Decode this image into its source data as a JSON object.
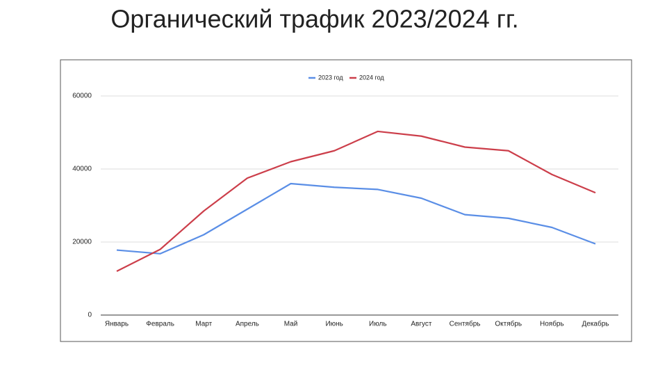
{
  "chart_data": {
    "type": "line",
    "title": "Органический трафик 2023/2024 гг.",
    "categories": [
      "Январь",
      "Февраль",
      "Март",
      "Апрель",
      "Май",
      "Июнь",
      "Июль",
      "Август",
      "Сентябрь",
      "Октябрь",
      "Ноябрь",
      "Декабрь"
    ],
    "series": [
      {
        "name": "2023 год",
        "color": "#5a8ee6",
        "values": [
          17800,
          16800,
          22000,
          29000,
          36000,
          35000,
          34400,
          32000,
          27500,
          26500,
          24000,
          19500
        ]
      },
      {
        "name": "2024 год",
        "color": "#cc3e4a",
        "values": [
          12000,
          18000,
          28500,
          37500,
          42000,
          45000,
          50300,
          49000,
          46000,
          45000,
          38500,
          33500
        ]
      }
    ],
    "ylim": [
      0,
      60000
    ],
    "yticks": [
      0,
      20000,
      40000,
      60000
    ],
    "grid": true,
    "legend": "top"
  }
}
